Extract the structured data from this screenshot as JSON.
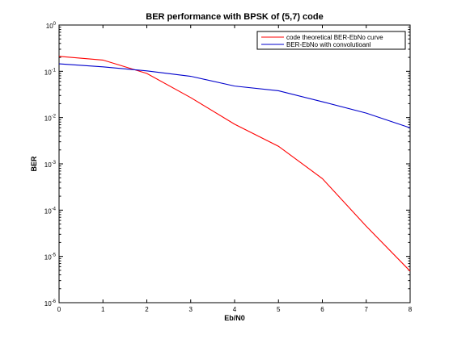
{
  "chart_data": {
    "type": "line",
    "title": "BER performance with BPSK of (5,7) code",
    "xlabel": "Eb/N0",
    "ylabel": "BER",
    "xlim": [
      0,
      8
    ],
    "ylim": [
      1e-06,
      1
    ],
    "yscale": "log",
    "grid": false,
    "legend_position": "top-right",
    "x_ticks": [
      "0",
      "1",
      "2",
      "3",
      "4",
      "5",
      "6",
      "7",
      "8"
    ],
    "y_ticks": [
      {
        "value": 1,
        "base": "10",
        "exp": "0"
      },
      {
        "value": 0.1,
        "base": "10",
        "exp": "-1"
      },
      {
        "value": 0.01,
        "base": "10",
        "exp": "-2"
      },
      {
        "value": 0.001,
        "base": "10",
        "exp": "-3"
      },
      {
        "value": 0.0001,
        "base": "10",
        "exp": "-4"
      },
      {
        "value": 1e-05,
        "base": "10",
        "exp": "-5"
      },
      {
        "value": 1e-06,
        "base": "10",
        "exp": "-6"
      }
    ],
    "x": [
      0,
      1,
      2,
      3,
      4,
      5,
      6,
      7,
      8
    ],
    "series": [
      {
        "name": "code theoretical BER-EbNo curve",
        "color": "#ff0000",
        "values": [
          0.21,
          0.175,
          0.09,
          0.027,
          0.0072,
          0.0024,
          0.00048,
          4.5e-05,
          4.8e-06
        ]
      },
      {
        "name": "BER-EbNo with convolutioanl",
        "color": "#0000cc",
        "values": [
          0.145,
          0.125,
          0.102,
          0.078,
          0.048,
          0.038,
          0.022,
          0.0125,
          0.006
        ]
      }
    ]
  }
}
